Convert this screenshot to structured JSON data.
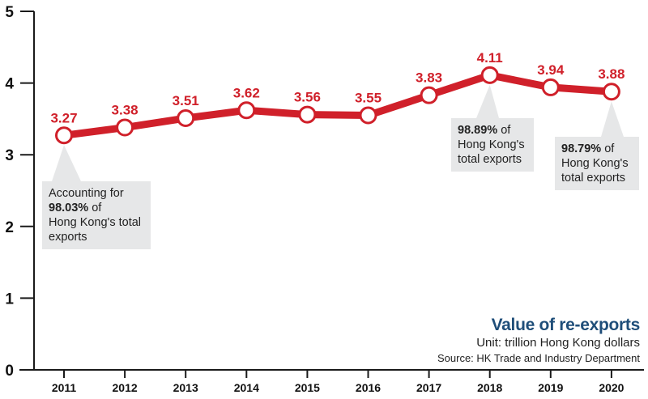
{
  "chart_data": {
    "type": "line",
    "title": "Value of re-exports",
    "subtitle": "Unit: trillion Hong Kong dollars",
    "source": "Source: HK Trade and Industry Department",
    "xlabel": "",
    "ylabel": "",
    "categories": [
      "2011",
      "2012",
      "2013",
      "2014",
      "2015",
      "2016",
      "2017",
      "2018",
      "2019",
      "2020"
    ],
    "series": [
      {
        "name": "Value of re-exports",
        "values": [
          3.27,
          3.38,
          3.51,
          3.62,
          3.56,
          3.55,
          3.83,
          4.11,
          3.94,
          3.88
        ],
        "labels": [
          "3.27",
          "3.38",
          "3.51",
          "3.62",
          "3.56",
          "3.55",
          "3.83",
          "4.11",
          "3.94",
          "3.88"
        ]
      }
    ],
    "ylim": [
      0,
      5
    ],
    "yticks": [
      "0",
      "1",
      "2",
      "3",
      "4",
      "5"
    ],
    "grid": false,
    "annotations": [
      {
        "category": "2011",
        "prefix": "Accounting for",
        "bold": "98.03%",
        "rest1": " of",
        "rest2": "Hong Kong's total",
        "rest3": "exports"
      },
      {
        "category": "2018",
        "bold": "98.89%",
        "rest1": " of",
        "rest2": "Hong Kong's",
        "rest3": "total exports"
      },
      {
        "category": "2020",
        "bold": "98.79%",
        "rest1": " of",
        "rest2": "Hong Kong's",
        "rest3": "total exports"
      }
    ],
    "colors": {
      "line": "#d0202a",
      "title": "#1f4e79",
      "callout": "#e6e7e8",
      "axis": "#1a1a1a"
    }
  }
}
